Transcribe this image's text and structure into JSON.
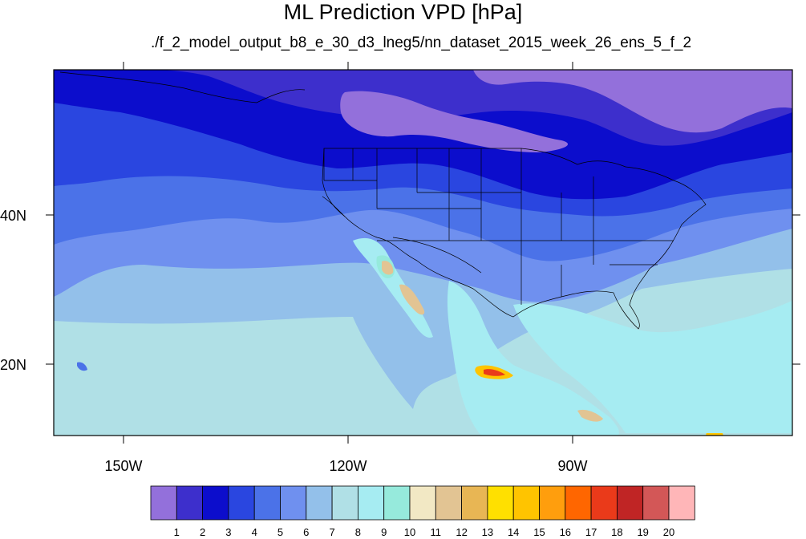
{
  "title": "ML Prediction VPD [hPa]",
  "subtitle": "./f_2_model_output_b8_e_30_d3_lneg5/nn_dataset_2015_week_26_ens_5_f_2",
  "lon_labels": [
    "150W",
    "120W",
    "90W"
  ],
  "lat_labels": [
    "40N",
    "20N"
  ],
  "colorbar": {
    "labels": [
      "1",
      "2",
      "3",
      "4",
      "5",
      "6",
      "7",
      "8",
      "9",
      "10",
      "11",
      "12",
      "13",
      "14",
      "15",
      "16",
      "17",
      "18",
      "19",
      "20"
    ],
    "colors": [
      "#9370db",
      "#3d2fcc",
      "#0c0dcc",
      "#2a46e0",
      "#4b72e8",
      "#6f90ef",
      "#93c0ea",
      "#b0e0e6",
      "#a6ecf2",
      "#96eadc",
      "#f2e8c4",
      "#e2c493",
      "#e8b654",
      "#ffe000",
      "#ffc400",
      "#ff9e0d",
      "#ff6600",
      "#ea3a1a",
      "#c02525",
      "#d35757",
      "#ffb6b8"
    ]
  }
}
